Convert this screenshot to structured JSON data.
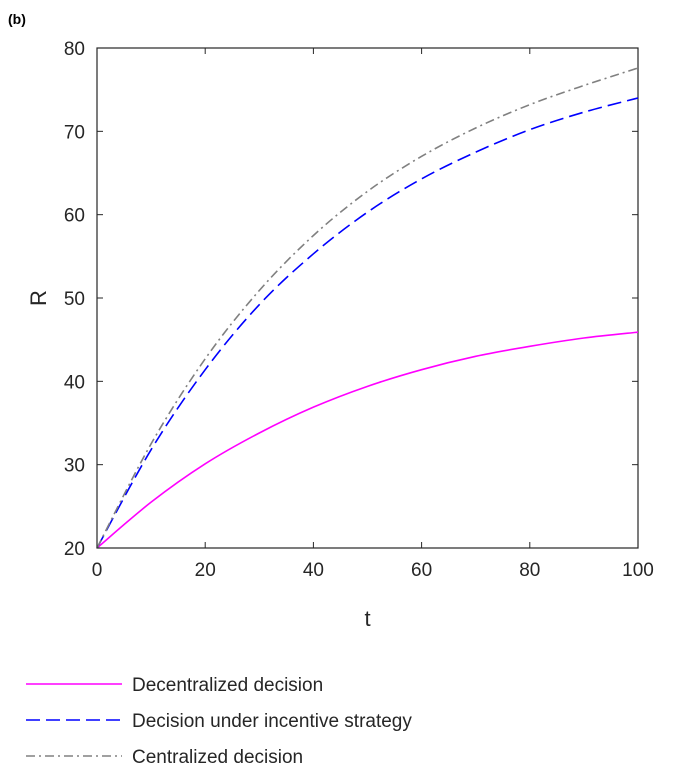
{
  "panel_label": "(b)",
  "chart_data": {
    "type": "line",
    "xlabel": "t",
    "ylabel": "R",
    "xlim": [
      0,
      100
    ],
    "ylim": [
      20,
      80
    ],
    "xticks": [
      0,
      20,
      40,
      60,
      80,
      100
    ],
    "yticks": [
      20,
      30,
      40,
      50,
      60,
      70,
      80
    ],
    "grid": false,
    "legend_position": "bottom-outside",
    "x": [
      0,
      10,
      20,
      30,
      40,
      50,
      60,
      70,
      80,
      90,
      100
    ],
    "series": [
      {
        "name": "Decentralized decision",
        "color": "#ff00ff",
        "dash": "solid",
        "values": [
          20.0,
          25.5,
          30.1,
          33.8,
          36.9,
          39.4,
          41.4,
          43.0,
          44.2,
          45.2,
          45.9
        ]
      },
      {
        "name": "Decision under incentive strategy",
        "color": "#0000ff",
        "dash": "dashed",
        "values": [
          20.0,
          31.8,
          41.4,
          49.2,
          55.3,
          60.3,
          64.3,
          67.5,
          70.2,
          72.3,
          74.0
        ]
      },
      {
        "name": "Centralized decision",
        "color": "#808080",
        "dash": "dashdot",
        "values": [
          20.0,
          32.5,
          42.7,
          50.9,
          57.5,
          62.8,
          67.0,
          70.4,
          73.2,
          75.5,
          77.6
        ]
      }
    ]
  }
}
